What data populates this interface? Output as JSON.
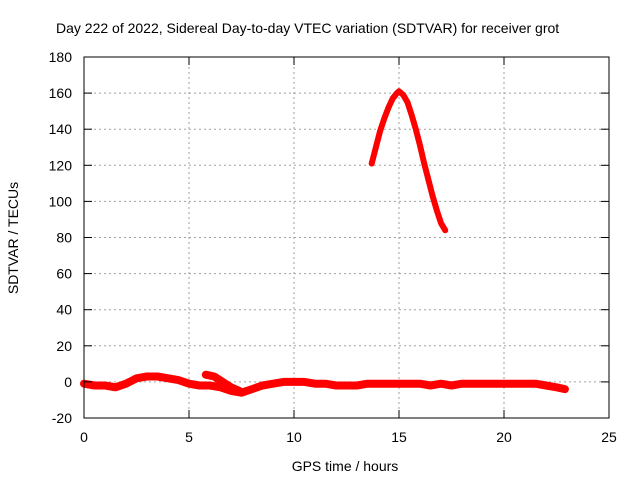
{
  "chart_data": {
    "type": "line",
    "title": "Day 222 of 2022, Sidereal Day-to-day VTEC variation (SDTVAR) for receiver grot",
    "xlabel": "GPS time / hours",
    "ylabel": "SDTVAR / TECUs",
    "xlim": [
      0,
      25
    ],
    "ylim": [
      -20,
      180
    ],
    "x_ticks": [
      "0",
      "5",
      "10",
      "15",
      "20",
      "25"
    ],
    "y_ticks": [
      "-20",
      "0",
      "20",
      "40",
      "60",
      "80",
      "100",
      "120",
      "140",
      "160",
      "180"
    ],
    "grid": true,
    "legend": "none",
    "colors": {
      "series": "#ff0000",
      "grid": "#a0a0a0",
      "axis": "#000000"
    },
    "series": [
      {
        "points": [
          [
            0.0,
            -1
          ],
          [
            0.5,
            -2
          ],
          [
            1.0,
            -2
          ],
          [
            1.5,
            -3
          ],
          [
            2.0,
            -1
          ],
          [
            2.5,
            2
          ],
          [
            3.0,
            3
          ],
          [
            3.5,
            3
          ],
          [
            4.0,
            2
          ],
          [
            4.5,
            1
          ],
          [
            5.0,
            -1
          ],
          [
            5.5,
            -2
          ],
          [
            6.0,
            -2
          ],
          [
            6.5,
            -3
          ],
          [
            7.0,
            -5
          ],
          [
            7.5,
            -6
          ],
          [
            8.0,
            -4
          ],
          [
            8.5,
            -2
          ],
          [
            9.0,
            -1
          ],
          [
            9.5,
            0
          ],
          [
            10.0,
            0
          ],
          [
            10.5,
            0
          ],
          [
            11.0,
            -1
          ],
          [
            11.5,
            -1
          ],
          [
            12.0,
            -2
          ],
          [
            12.5,
            -2
          ],
          [
            13.0,
            -2
          ],
          [
            13.5,
            -1
          ],
          [
            14.0,
            -1
          ],
          [
            14.5,
            -1
          ],
          [
            15.0,
            -1
          ],
          [
            15.5,
            -1
          ],
          [
            16.0,
            -1
          ],
          [
            16.5,
            -2
          ],
          [
            17.0,
            -1
          ],
          [
            17.5,
            -2
          ],
          [
            18.0,
            -1
          ],
          [
            18.5,
            -1
          ],
          [
            19.0,
            -1
          ],
          [
            19.5,
            -1
          ],
          [
            20.0,
            -1
          ],
          [
            20.5,
            -1
          ],
          [
            21.0,
            -1
          ],
          [
            21.5,
            -1
          ],
          [
            22.0,
            -2
          ],
          [
            22.5,
            -3
          ],
          [
            22.9,
            -4
          ]
        ]
      },
      {
        "points": [
          [
            5.8,
            4
          ],
          [
            6.2,
            3
          ],
          [
            6.6,
            0
          ],
          [
            7.0,
            -3
          ],
          [
            7.4,
            -5
          ]
        ]
      },
      {
        "points": [
          [
            13.7,
            121
          ],
          [
            13.9,
            130
          ],
          [
            14.1,
            139
          ],
          [
            14.3,
            146
          ],
          [
            14.5,
            152
          ],
          [
            14.7,
            157
          ],
          [
            14.9,
            160
          ],
          [
            15.0,
            161
          ],
          [
            15.2,
            159
          ],
          [
            15.4,
            155
          ],
          [
            15.6,
            148
          ],
          [
            15.8,
            140
          ],
          [
            16.0,
            131
          ],
          [
            16.2,
            121
          ],
          [
            16.4,
            112
          ],
          [
            16.6,
            103
          ],
          [
            16.8,
            95
          ],
          [
            17.0,
            88
          ],
          [
            17.2,
            84
          ]
        ]
      }
    ]
  }
}
